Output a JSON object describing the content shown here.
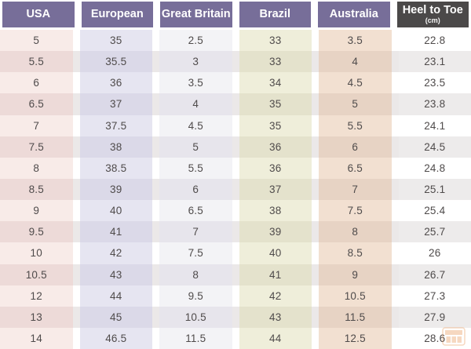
{
  "chart_data": {
    "type": "table",
    "columns": [
      {
        "label": "USA",
        "sublabel": "",
        "header_bg": "#776e99",
        "zebra_light": "#f8ebe8",
        "zebra_dark": "#eddad8"
      },
      {
        "label": "European",
        "sublabel": "",
        "header_bg": "#776e99",
        "zebra_light": "#e6e5f1",
        "zebra_dark": "#dbd9e8"
      },
      {
        "label": "Great Britain",
        "sublabel": "",
        "header_bg": "#776e99",
        "zebra_light": "#f3f3f6",
        "zebra_dark": "#e7e5ec"
      },
      {
        "label": "Brazil",
        "sublabel": "",
        "header_bg": "#776e99",
        "zebra_light": "#efeeda",
        "zebra_dark": "#e4e2cc"
      },
      {
        "label": "Australia",
        "sublabel": "",
        "header_bg": "#776e99",
        "zebra_light": "#f2e0d1",
        "zebra_dark": "#e7d3c4"
      },
      {
        "label": "Heel to Toe",
        "sublabel": "(cm)",
        "header_bg": "#4b4949",
        "zebra_light": "#ffffff",
        "zebra_dark": "#edebeb"
      }
    ],
    "rows": [
      [
        "5",
        "35",
        "2.5",
        "33",
        "3.5",
        "22.8"
      ],
      [
        "5.5",
        "35.5",
        "3",
        "33",
        "4",
        "23.1"
      ],
      [
        "6",
        "36",
        "3.5",
        "34",
        "4.5",
        "23.5"
      ],
      [
        "6.5",
        "37",
        "4",
        "35",
        "5",
        "23.8"
      ],
      [
        "7",
        "37.5",
        "4.5",
        "35",
        "5.5",
        "24.1"
      ],
      [
        "7.5",
        "38",
        "5",
        "36",
        "6",
        "24.5"
      ],
      [
        "8",
        "38.5",
        "5.5",
        "36",
        "6.5",
        "24.8"
      ],
      [
        "8.5",
        "39",
        "6",
        "37",
        "7",
        "25.1"
      ],
      [
        "9",
        "40",
        "6.5",
        "38",
        "7.5",
        "25.4"
      ],
      [
        "9.5",
        "41",
        "7",
        "39",
        "8",
        "25.7"
      ],
      [
        "10",
        "42",
        "7.5",
        "40",
        "8.5",
        "26"
      ],
      [
        "10.5",
        "43",
        "8",
        "41",
        "9",
        "26.7"
      ],
      [
        "12",
        "44",
        "9.5",
        "42",
        "10.5",
        "27.3"
      ],
      [
        "13",
        "45",
        "10.5",
        "43",
        "11.5",
        "27.9"
      ],
      [
        "14",
        "46.5",
        "11.5",
        "44",
        "12.5",
        "28.6"
      ]
    ],
    "layout": {
      "header_text_color": "#ffffff",
      "body_text_color": "#4f4b4b",
      "row_even_gutter": "#ebe8e8",
      "row_odd_gutter": "#ffffff"
    }
  },
  "watermark": {
    "icon": "shop-logo-icon",
    "color": "#e8924e"
  }
}
